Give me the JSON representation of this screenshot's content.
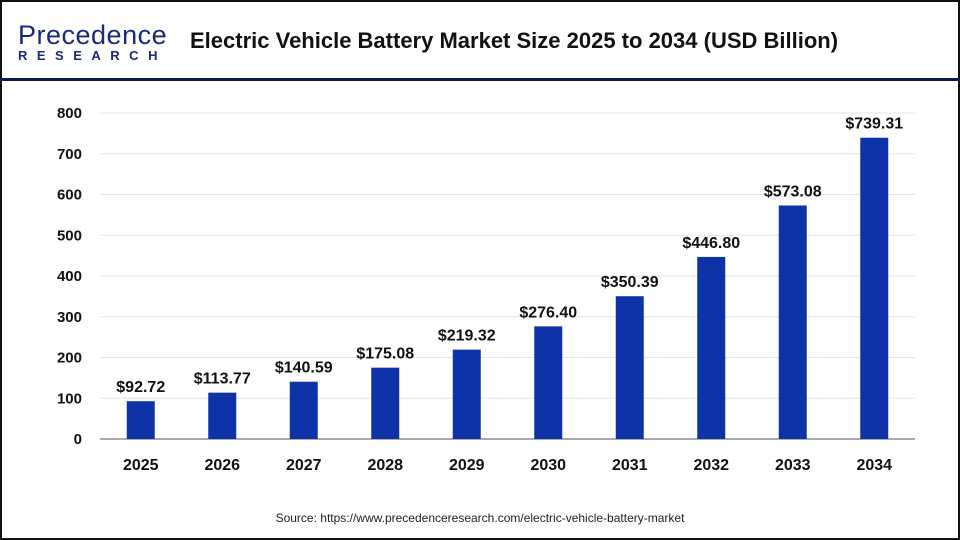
{
  "header": {
    "logo_top": "Precedence",
    "logo_bottom": "RESEARCH",
    "title": "Electric Vehicle Battery Market Size 2025 to 2034 (USD Billion)"
  },
  "source": "Source: https://www.precedenceresearch.com/electric-vehicle-battery-market",
  "chart_data": {
    "type": "bar",
    "title": "Electric Vehicle Battery Market Size 2025 to 2034 (USD Billion)",
    "categories": [
      "2025",
      "2026",
      "2027",
      "2028",
      "2029",
      "2030",
      "2031",
      "2032",
      "2033",
      "2034"
    ],
    "values": [
      92.72,
      113.77,
      140.59,
      175.08,
      219.32,
      276.4,
      350.39,
      446.8,
      573.08,
      739.31
    ],
    "labels": [
      "$92.72",
      "$113.77",
      "$140.59",
      "$175.08",
      "$219.32",
      "$276.40",
      "$350.39",
      "$446.80",
      "$573.08",
      "$739.31"
    ],
    "yticks": [
      0,
      100,
      200,
      300,
      400,
      500,
      600,
      700,
      800
    ],
    "ylim": [
      0,
      800
    ],
    "grid": true,
    "bar_color": "#0d33a6"
  }
}
